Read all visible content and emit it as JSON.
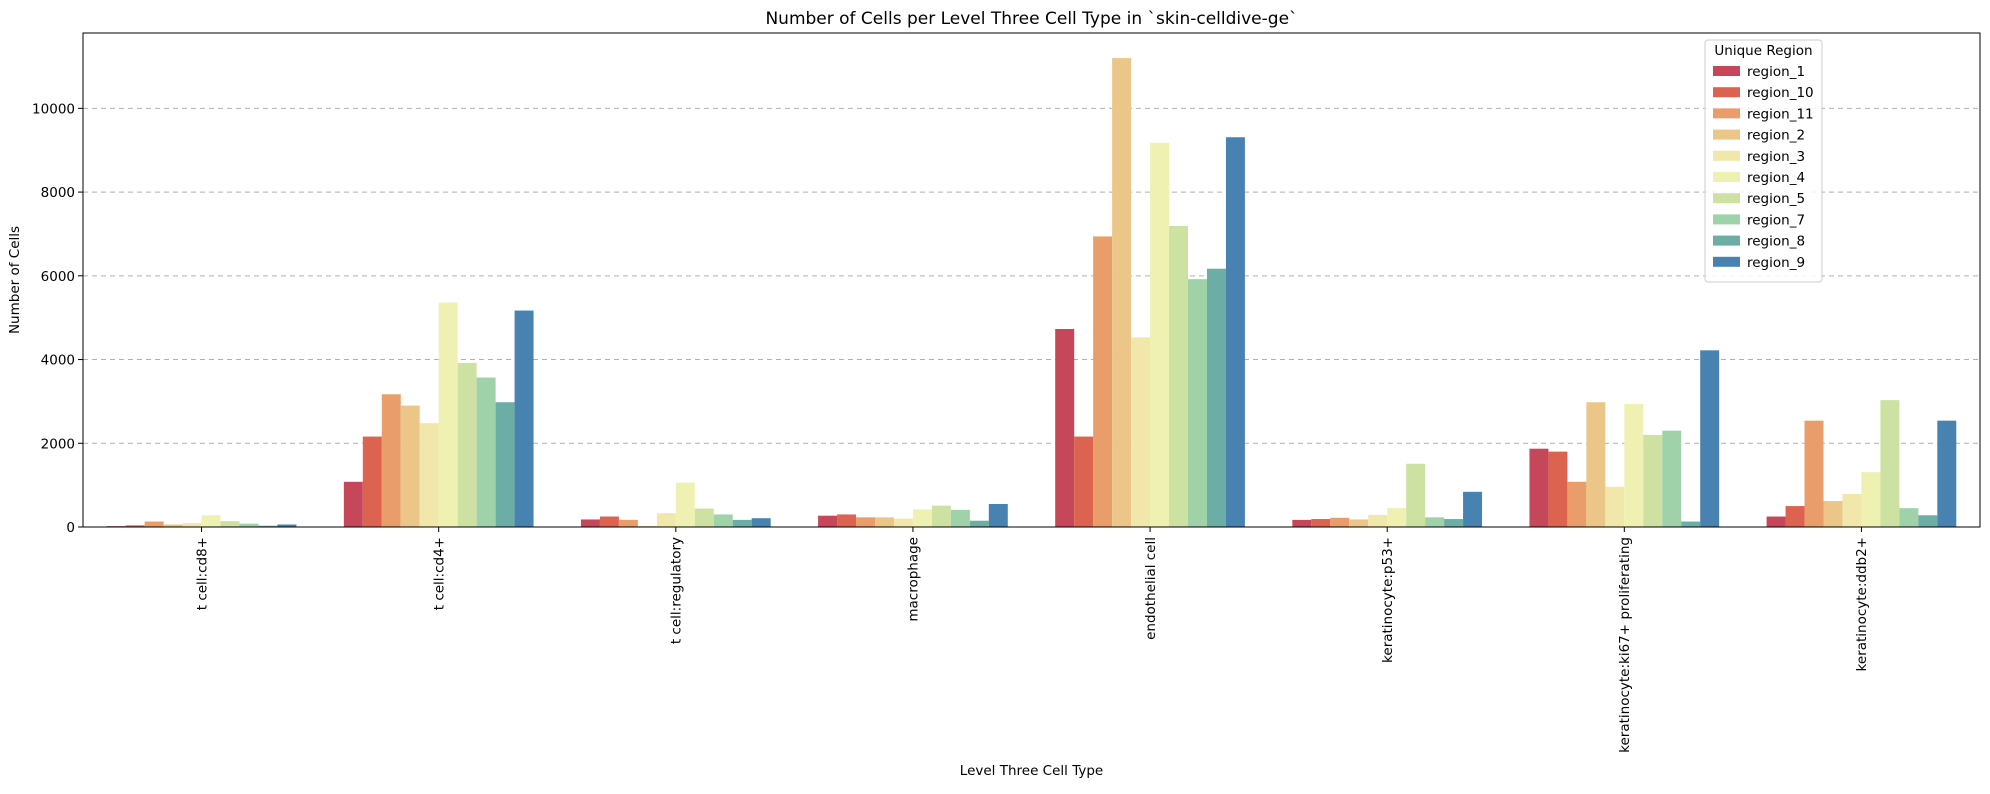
{
  "chart_data": {
    "type": "bar",
    "title": "Number of Cells per Level Three Cell Type in `skin-celldive-ge`",
    "xlabel": "Level Three Cell Type",
    "ylabel": "Number of Cells",
    "ylim": [
      0,
      11800
    ],
    "yticks": [
      0,
      2000,
      4000,
      6000,
      8000,
      10000
    ],
    "grid": "y-dashed",
    "legend_title": "Unique Region",
    "legend_position": "upper-right",
    "categories": [
      "t cell:cd8+",
      "t cell:cd4+",
      "t cell:regulatory",
      "macrophage",
      "endothelial cell",
      "keratinocyte:p53+",
      "keratinocyte:ki67+ proliferating",
      "keratinocyte:ddb2+"
    ],
    "series": [
      {
        "name": "region_1",
        "color": "#c7475a",
        "values": [
          20,
          1080,
          180,
          270,
          4730,
          170,
          1870,
          250
        ]
      },
      {
        "name": "region_10",
        "color": "#dc6350",
        "values": [
          40,
          2160,
          250,
          300,
          2160,
          190,
          1800,
          500
        ]
      },
      {
        "name": "region_11",
        "color": "#e99d6a",
        "values": [
          130,
          3170,
          170,
          230,
          6940,
          220,
          1080,
          2540
        ]
      },
      {
        "name": "region_2",
        "color": "#ebc688",
        "values": [
          60,
          2900,
          20,
          230,
          11200,
          180,
          2980,
          620
        ]
      },
      {
        "name": "region_3",
        "color": "#f2e7ab",
        "values": [
          90,
          2480,
          330,
          200,
          4530,
          290,
          960,
          790
        ]
      },
      {
        "name": "region_4",
        "color": "#eef1b1",
        "values": [
          280,
          5360,
          1060,
          420,
          9180,
          450,
          2940,
          1310
        ]
      },
      {
        "name": "region_5",
        "color": "#cde1a3",
        "values": [
          140,
          3920,
          440,
          510,
          7190,
          1510,
          2200,
          3030
        ]
      },
      {
        "name": "region_7",
        "color": "#9fd2a8",
        "values": [
          80,
          3570,
          300,
          410,
          5920,
          230,
          2300,
          450
        ]
      },
      {
        "name": "region_8",
        "color": "#6cada6",
        "values": [
          30,
          2980,
          170,
          150,
          6170,
          190,
          130,
          280
        ]
      },
      {
        "name": "region_9",
        "color": "#4882b1",
        "values": [
          60,
          5170,
          210,
          550,
          9310,
          840,
          4220,
          2540
        ]
      }
    ]
  }
}
